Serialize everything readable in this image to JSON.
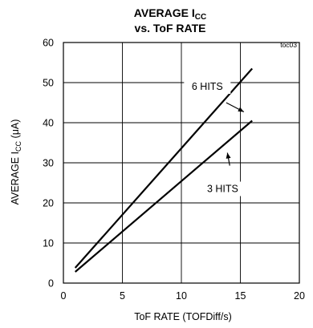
{
  "chart_data": {
    "type": "line",
    "title": "AVERAGE I",
    "title_subscript": "CC",
    "subtitle": "vs. ToF RATE",
    "figure_code": "toc03",
    "xlabel": "ToF RATE (TOFDiff/s)",
    "ylabel_prefix": "AVERAGE I",
    "ylabel_subscript": "CC",
    "ylabel_suffix": " (μA)",
    "xlim": [
      0,
      20
    ],
    "ylim": [
      0,
      60
    ],
    "xticks": [
      0,
      5,
      10,
      15,
      20
    ],
    "yticks": [
      0,
      10,
      20,
      30,
      40,
      50,
      60
    ],
    "grid": true,
    "series": [
      {
        "name": "6 HITS",
        "x": [
          1,
          16
        ],
        "y": [
          3.8,
          53.5
        ]
      },
      {
        "name": "3 HITS",
        "x": [
          1,
          16
        ],
        "y": [
          2.8,
          40.5
        ]
      }
    ],
    "annotations": [
      {
        "text": "6 HITS"
      },
      {
        "text": "3 HITS"
      }
    ]
  }
}
